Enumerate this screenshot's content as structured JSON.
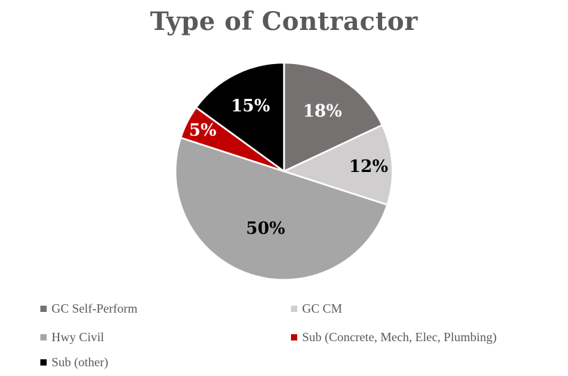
{
  "chart_data": {
    "type": "pie",
    "title": "Type of Contractor",
    "categories": [
      "GC Self-Perform",
      "GC CM",
      "Hwy Civil",
      "Sub (Concrete, Mech, Elec, Plumbing)",
      "Sub (other)"
    ],
    "values": [
      18,
      12,
      50,
      5,
      15
    ],
    "data_labels": [
      "18%",
      "12%",
      "50%",
      "5%",
      "15%"
    ],
    "colors": [
      "#767171",
      "#d0cece",
      "#a6a6a6",
      "#c00000",
      "#000000"
    ],
    "label_colors": [
      "#ffffff",
      "#000000",
      "#000000",
      "#ffffff",
      "#ffffff"
    ],
    "legend_position": "bottom",
    "start_angle": "top",
    "direction": "clockwise"
  }
}
